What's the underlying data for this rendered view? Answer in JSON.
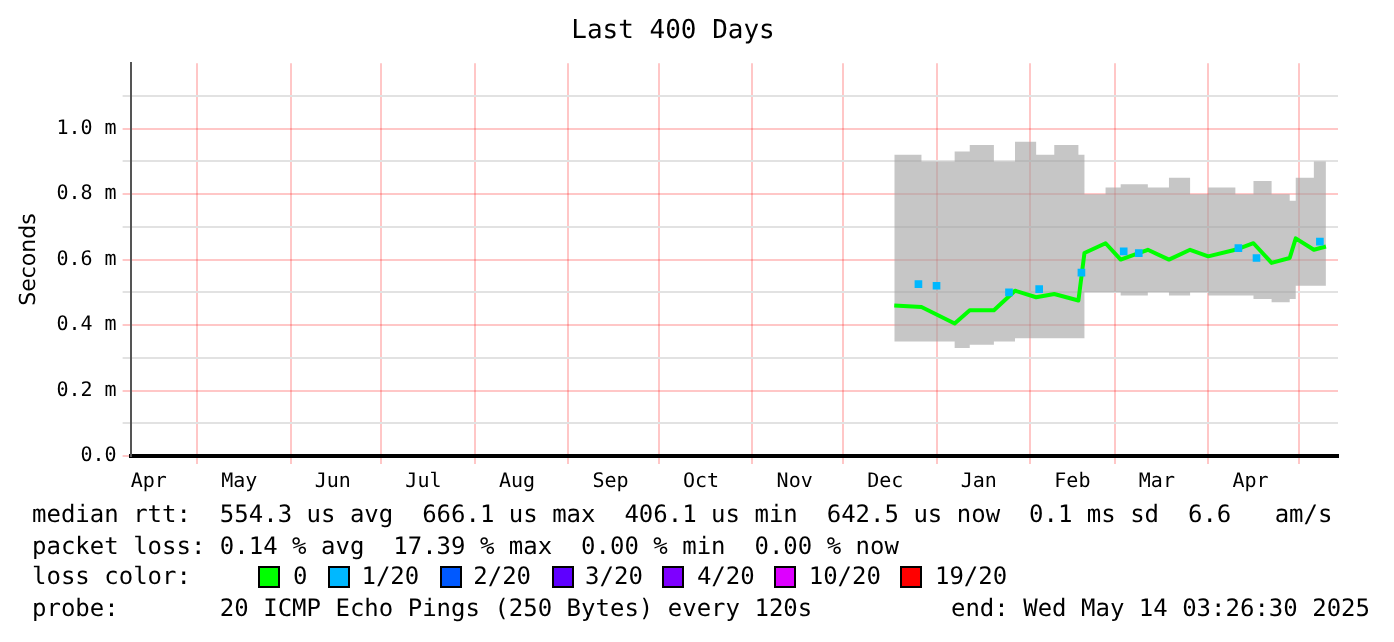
{
  "chart_data": {
    "type": "line",
    "title": "Last 400 Days",
    "ylabel": "Seconds",
    "legend_title": "loss color:",
    "legend": "bottom",
    "grid": true,
    "xlim": [
      "2024-04-09",
      "2025-05-14"
    ],
    "xticks": [
      {
        "value": "2024-04-15",
        "label": "Apr"
      },
      {
        "value": "2024-05-01",
        "label": null
      },
      {
        "value": "2024-05-15",
        "label": "May"
      },
      {
        "value": "2024-06-01",
        "label": null
      },
      {
        "value": "2024-06-15",
        "label": "Jun"
      },
      {
        "value": "2024-07-01",
        "label": null
      },
      {
        "value": "2024-07-15",
        "label": "Jul"
      },
      {
        "value": "2024-08-01",
        "label": null
      },
      {
        "value": "2024-08-15",
        "label": "Aug"
      },
      {
        "value": "2024-09-01",
        "label": null
      },
      {
        "value": "2024-09-15",
        "label": "Sep"
      },
      {
        "value": "2024-10-01",
        "label": null
      },
      {
        "value": "2024-10-15",
        "label": "Oct"
      },
      {
        "value": "2024-11-01",
        "label": null
      },
      {
        "value": "2024-11-15",
        "label": "Nov"
      },
      {
        "value": "2024-12-01",
        "label": null
      },
      {
        "value": "2024-12-15",
        "label": "Dec"
      },
      {
        "value": "2025-01-01",
        "label": null
      },
      {
        "value": "2025-01-15",
        "label": "Jan"
      },
      {
        "value": "2025-02-01",
        "label": null
      },
      {
        "value": "2025-02-15",
        "label": "Feb"
      },
      {
        "value": "2025-03-01",
        "label": null
      },
      {
        "value": "2025-03-15",
        "label": "Mar"
      },
      {
        "value": "2025-04-01",
        "label": null
      },
      {
        "value": "2025-04-15",
        "label": "Apr"
      },
      {
        "value": "2025-05-01",
        "label": null
      }
    ],
    "ylim": [
      0,
      1.2
    ],
    "yticks": [
      {
        "value": 0,
        "label": "0.0"
      },
      {
        "value": 0.1,
        "label": null
      },
      {
        "value": 0.2,
        "label": "0.2 m"
      },
      {
        "value": 0.3,
        "label": null
      },
      {
        "value": 0.4,
        "label": "0.4 m"
      },
      {
        "value": 0.5,
        "label": null
      },
      {
        "value": 0.6,
        "label": "0.6 m"
      },
      {
        "value": 0.7,
        "label": null
      },
      {
        "value": 0.8,
        "label": "0.8 m"
      },
      {
        "value": 0.9,
        "label": null
      },
      {
        "value": 1.0,
        "label": "1.0 m"
      },
      {
        "value": 1.1,
        "label": null
      }
    ],
    "series": [
      {
        "name": "0",
        "color": "#00ff00",
        "x": [
          "2024-12-18",
          "2024-12-27",
          "2025-01-07",
          "2025-01-12",
          "2025-01-20",
          "2025-01-27",
          "2025-02-03",
          "2025-02-09",
          "2025-02-17",
          "2025-02-19",
          "2025-02-26",
          "2025-03-03",
          "2025-03-12",
          "2025-03-19",
          "2025-03-26",
          "2025-04-01",
          "2025-04-10",
          "2025-04-16",
          "2025-04-22",
          "2025-04-28",
          "2025-04-30",
          "2025-05-06",
          "2025-05-10"
        ],
        "values": [
          0.46,
          0.455,
          0.405,
          0.445,
          0.445,
          0.505,
          0.485,
          0.495,
          0.475,
          0.62,
          0.65,
          0.6,
          0.63,
          0.6,
          0.63,
          0.61,
          0.63,
          0.65,
          0.59,
          0.605,
          0.665,
          0.63,
          0.64
        ],
        "lower": [
          0.35,
          0.35,
          0.33,
          0.34,
          0.35,
          0.36,
          0.36,
          0.36,
          0.36,
          0.5,
          0.5,
          0.49,
          0.5,
          0.49,
          0.5,
          0.49,
          0.49,
          0.48,
          0.47,
          0.48,
          0.52,
          0.52,
          0.52
        ],
        "upper": [
          0.92,
          0.9,
          0.93,
          0.95,
          0.9,
          0.96,
          0.92,
          0.95,
          0.92,
          0.8,
          0.82,
          0.83,
          0.82,
          0.85,
          0.8,
          0.82,
          0.8,
          0.84,
          0.8,
          0.78,
          0.85,
          0.9,
          0.88
        ]
      },
      {
        "name": "1/20",
        "color": "#00b8ff",
        "type": "scatter",
        "marker": "square",
        "x": [
          "2024-12-26",
          "2025-01-01",
          "2025-01-25",
          "2025-02-04",
          "2025-02-18",
          "2025-03-04",
          "2025-03-09",
          "2025-04-11",
          "2025-04-17",
          "2025-05-08"
        ],
        "values": [
          0.525,
          0.52,
          0.5,
          0.51,
          0.56,
          0.625,
          0.62,
          0.635,
          0.605,
          0.655
        ]
      },
      {
        "name": "2/20",
        "color": "#0059ff",
        "type": "scatter",
        "marker": "square"
      },
      {
        "name": "3/20",
        "color": "#5e00ff",
        "type": "scatter",
        "marker": "square"
      },
      {
        "name": "4/20",
        "color": "#7e00ff",
        "type": "scatter",
        "marker": "square"
      },
      {
        "name": "10/20",
        "color": "#dd00ff",
        "type": "scatter",
        "marker": "square"
      },
      {
        "name": "19/20",
        "color": "#ff0000",
        "type": "scatter",
        "marker": "square"
      }
    ],
    "annotations": [
      "median rtt:  554.3 us avg  666.1 us max  406.1 us min  642.5 us now  0.1 ms sd  6.6   am/s",
      "packet loss: 0.14 % avg  17.39 % max  0.00 % min  0.00 % now",
      "probe:       20 ICMP Echo Pings (250 Bytes) every 120s",
      "end: Wed May 14 03:26:30 2025"
    ]
  }
}
